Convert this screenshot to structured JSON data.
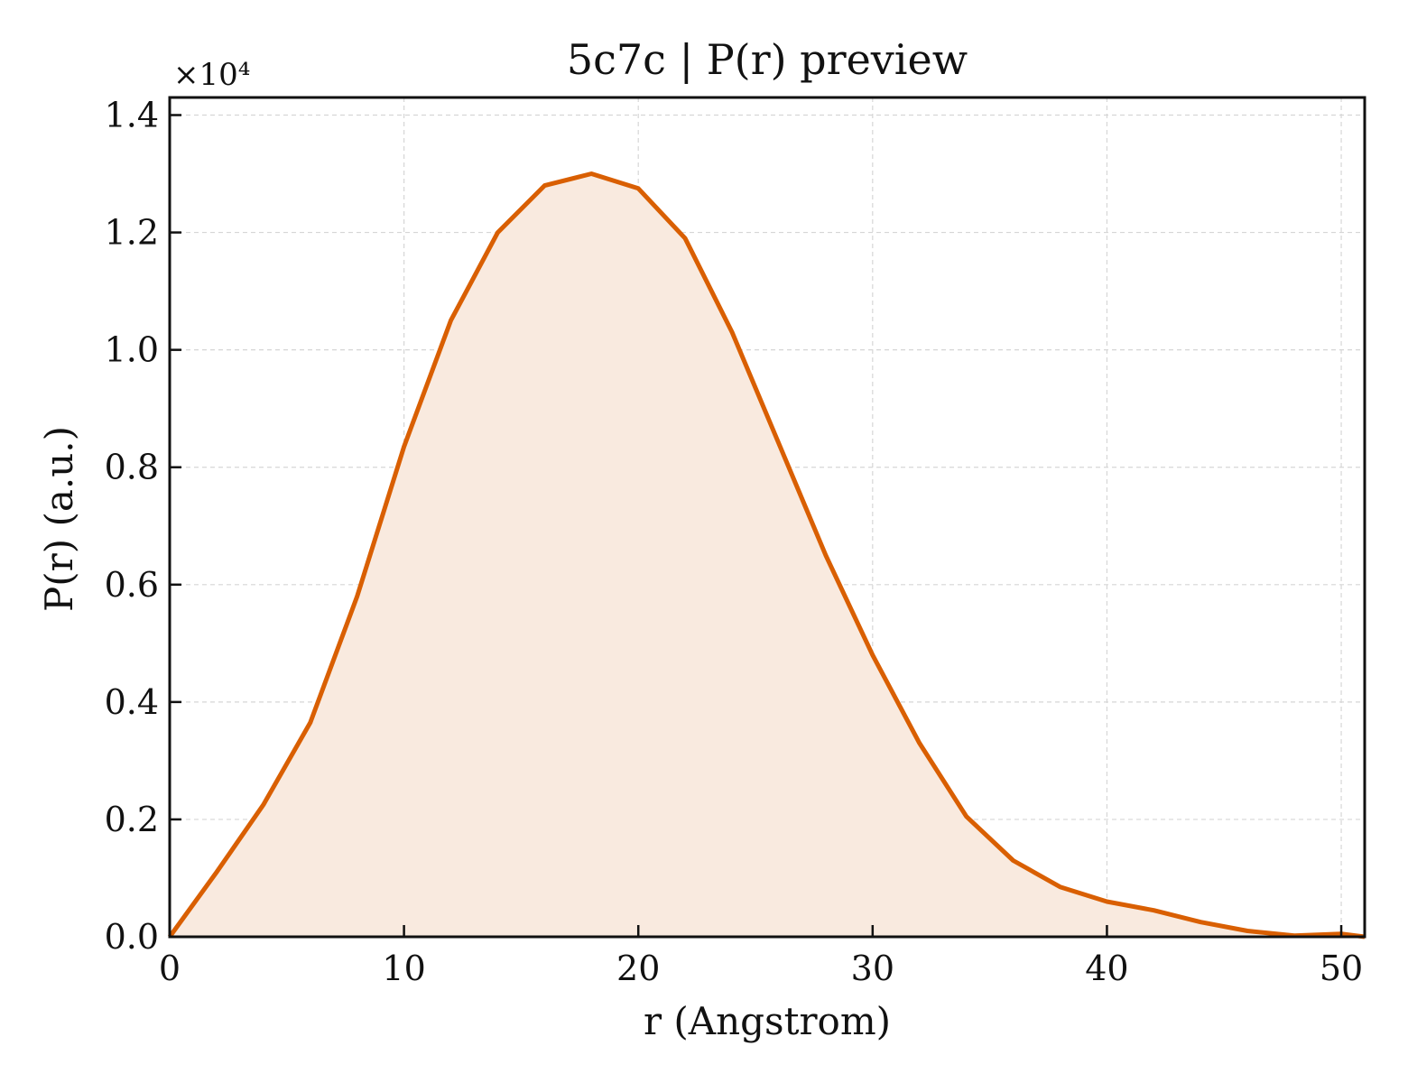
{
  "chart_data": {
    "type": "area",
    "title": "5c7c | P(r) preview",
    "xlabel": "r (Angstrom)",
    "ylabel": "P(r) (a.u.)",
    "y_scale_label": "×10⁴",
    "y_scale_factor": 10000,
    "xlim": [
      0,
      51
    ],
    "ylim": [
      0,
      14300
    ],
    "x_ticks": [
      0,
      10,
      20,
      30,
      40,
      50
    ],
    "x_tick_labels": [
      "0",
      "10",
      "20",
      "30",
      "40",
      "50"
    ],
    "y_ticks": [
      0,
      2000,
      4000,
      6000,
      8000,
      10000,
      12000,
      14000
    ],
    "y_tick_labels": [
      "0.0",
      "0.2",
      "0.4",
      "0.6",
      "0.8",
      "1.0",
      "1.2",
      "1.4"
    ],
    "grid": true,
    "colors": {
      "line": "#d95f02",
      "fill": "#f9eadf",
      "grid": "#d6d6d6",
      "axis": "#111111"
    },
    "x": [
      0,
      2,
      4,
      6,
      8,
      10,
      12,
      14,
      16,
      18,
      20,
      22,
      24,
      26,
      28,
      30,
      32,
      34,
      36,
      38,
      40,
      42,
      44,
      46,
      48,
      50,
      51
    ],
    "y": [
      0,
      1100,
      2250,
      3650,
      5800,
      8350,
      10500,
      12000,
      12800,
      13000,
      12750,
      11900,
      10300,
      8400,
      6500,
      4800,
      3300,
      2050,
      1300,
      850,
      600,
      450,
      250,
      100,
      20,
      50,
      0
    ]
  }
}
